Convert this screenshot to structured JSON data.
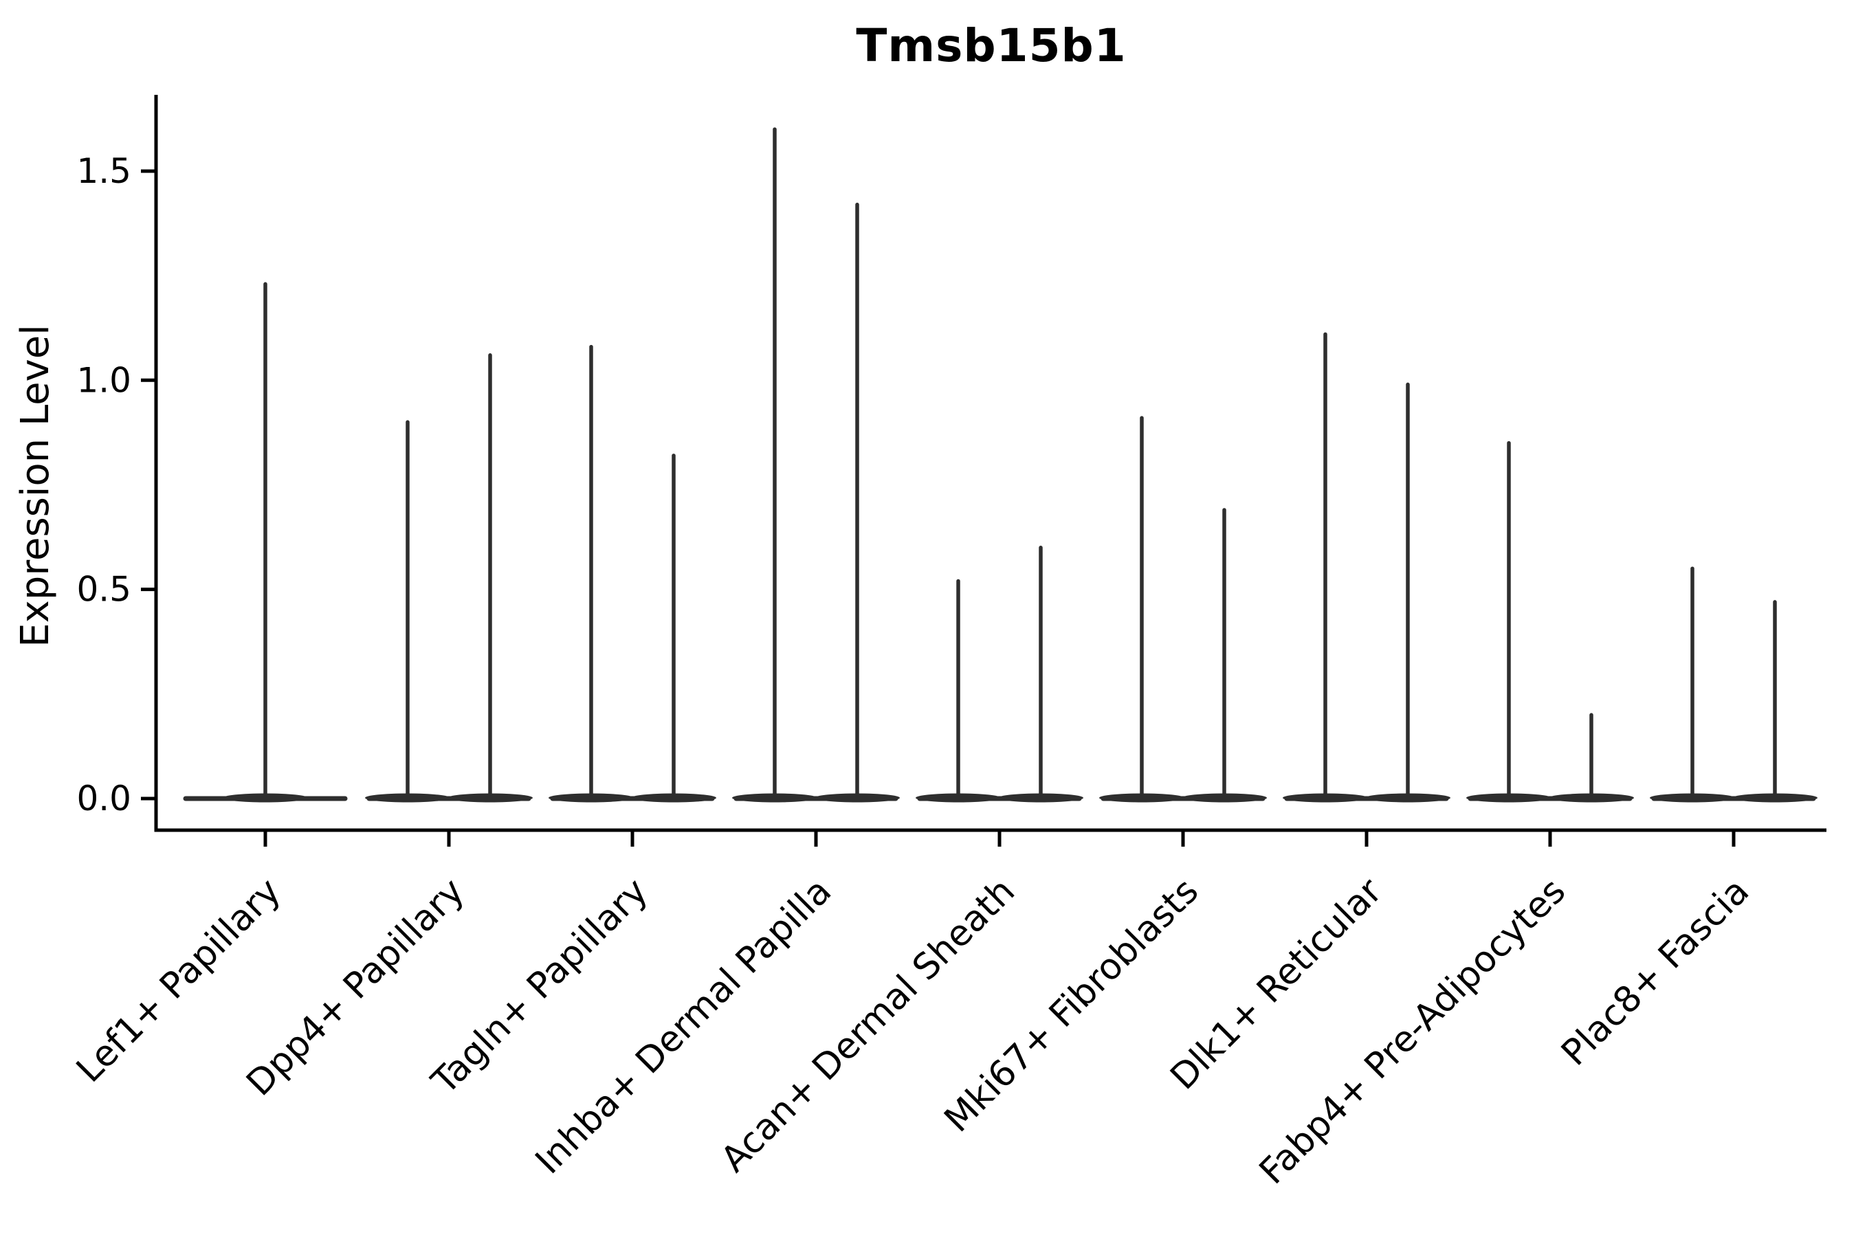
{
  "figure": {
    "background_color": "#ffffff"
  },
  "colors": {
    "violin_stroke": "#2e2e2e",
    "axis": "#000000",
    "text": "#000000",
    "background": "#ffffff"
  },
  "chart_data": {
    "type": "violin",
    "title": "Tmsb15b1",
    "ylabel": "Expression Level",
    "xlabel": "",
    "ylim": [
      0,
      1.68
    ],
    "yticks": [
      0,
      0.5,
      1.0,
      1.5
    ],
    "ytick_labels": [
      "0.0",
      "0.5",
      "1.0",
      "1.5"
    ],
    "grid": false,
    "legend_position": "none",
    "x_tick_label_rotation_deg": 45,
    "categories": [
      "Lef1+ Papillary",
      "Dpp4+ Papillary",
      "Tagln+ Papillary",
      "Inhba+ Dermal Papilla",
      "Acan+ Dermal Sheath",
      "Mki67+ Fibroblasts",
      "Dlk1+ Reticular",
      "Fabp4+ Pre-Adipocytes",
      "Plac8+ Fascia"
    ],
    "series": [
      {
        "category": "Lef1+ Papillary",
        "violins": [
          {
            "position": "center",
            "max_expression": 1.23
          }
        ]
      },
      {
        "category": "Dpp4+ Papillary",
        "violins": [
          {
            "position": "left",
            "max_expression": 0.9
          },
          {
            "position": "right",
            "max_expression": 1.06
          }
        ]
      },
      {
        "category": "Tagln+ Papillary",
        "violins": [
          {
            "position": "left",
            "max_expression": 1.08
          },
          {
            "position": "right",
            "max_expression": 0.82
          }
        ]
      },
      {
        "category": "Inhba+ Dermal Papilla",
        "violins": [
          {
            "position": "left",
            "max_expression": 1.6
          },
          {
            "position": "right",
            "max_expression": 1.42
          }
        ]
      },
      {
        "category": "Acan+ Dermal Sheath",
        "violins": [
          {
            "position": "left",
            "max_expression": 0.52
          },
          {
            "position": "right",
            "max_expression": 0.6
          }
        ]
      },
      {
        "category": "Mki67+ Fibroblasts",
        "violins": [
          {
            "position": "left",
            "max_expression": 0.91
          },
          {
            "position": "right",
            "max_expression": 0.69
          }
        ]
      },
      {
        "category": "Dlk1+ Reticular",
        "violins": [
          {
            "position": "left",
            "max_expression": 1.11
          },
          {
            "position": "right",
            "max_expression": 0.99
          }
        ]
      },
      {
        "category": "Fabp4+ Pre-Adipocytes",
        "violins": [
          {
            "position": "left",
            "max_expression": 0.85
          },
          {
            "position": "right",
            "max_expression": 0.2
          }
        ]
      },
      {
        "category": "Plac8+ Fascia",
        "violins": [
          {
            "position": "left",
            "max_expression": 0.55
          },
          {
            "position": "right",
            "max_expression": 0.47
          }
        ]
      }
    ],
    "baseline_value": 0.0
  }
}
